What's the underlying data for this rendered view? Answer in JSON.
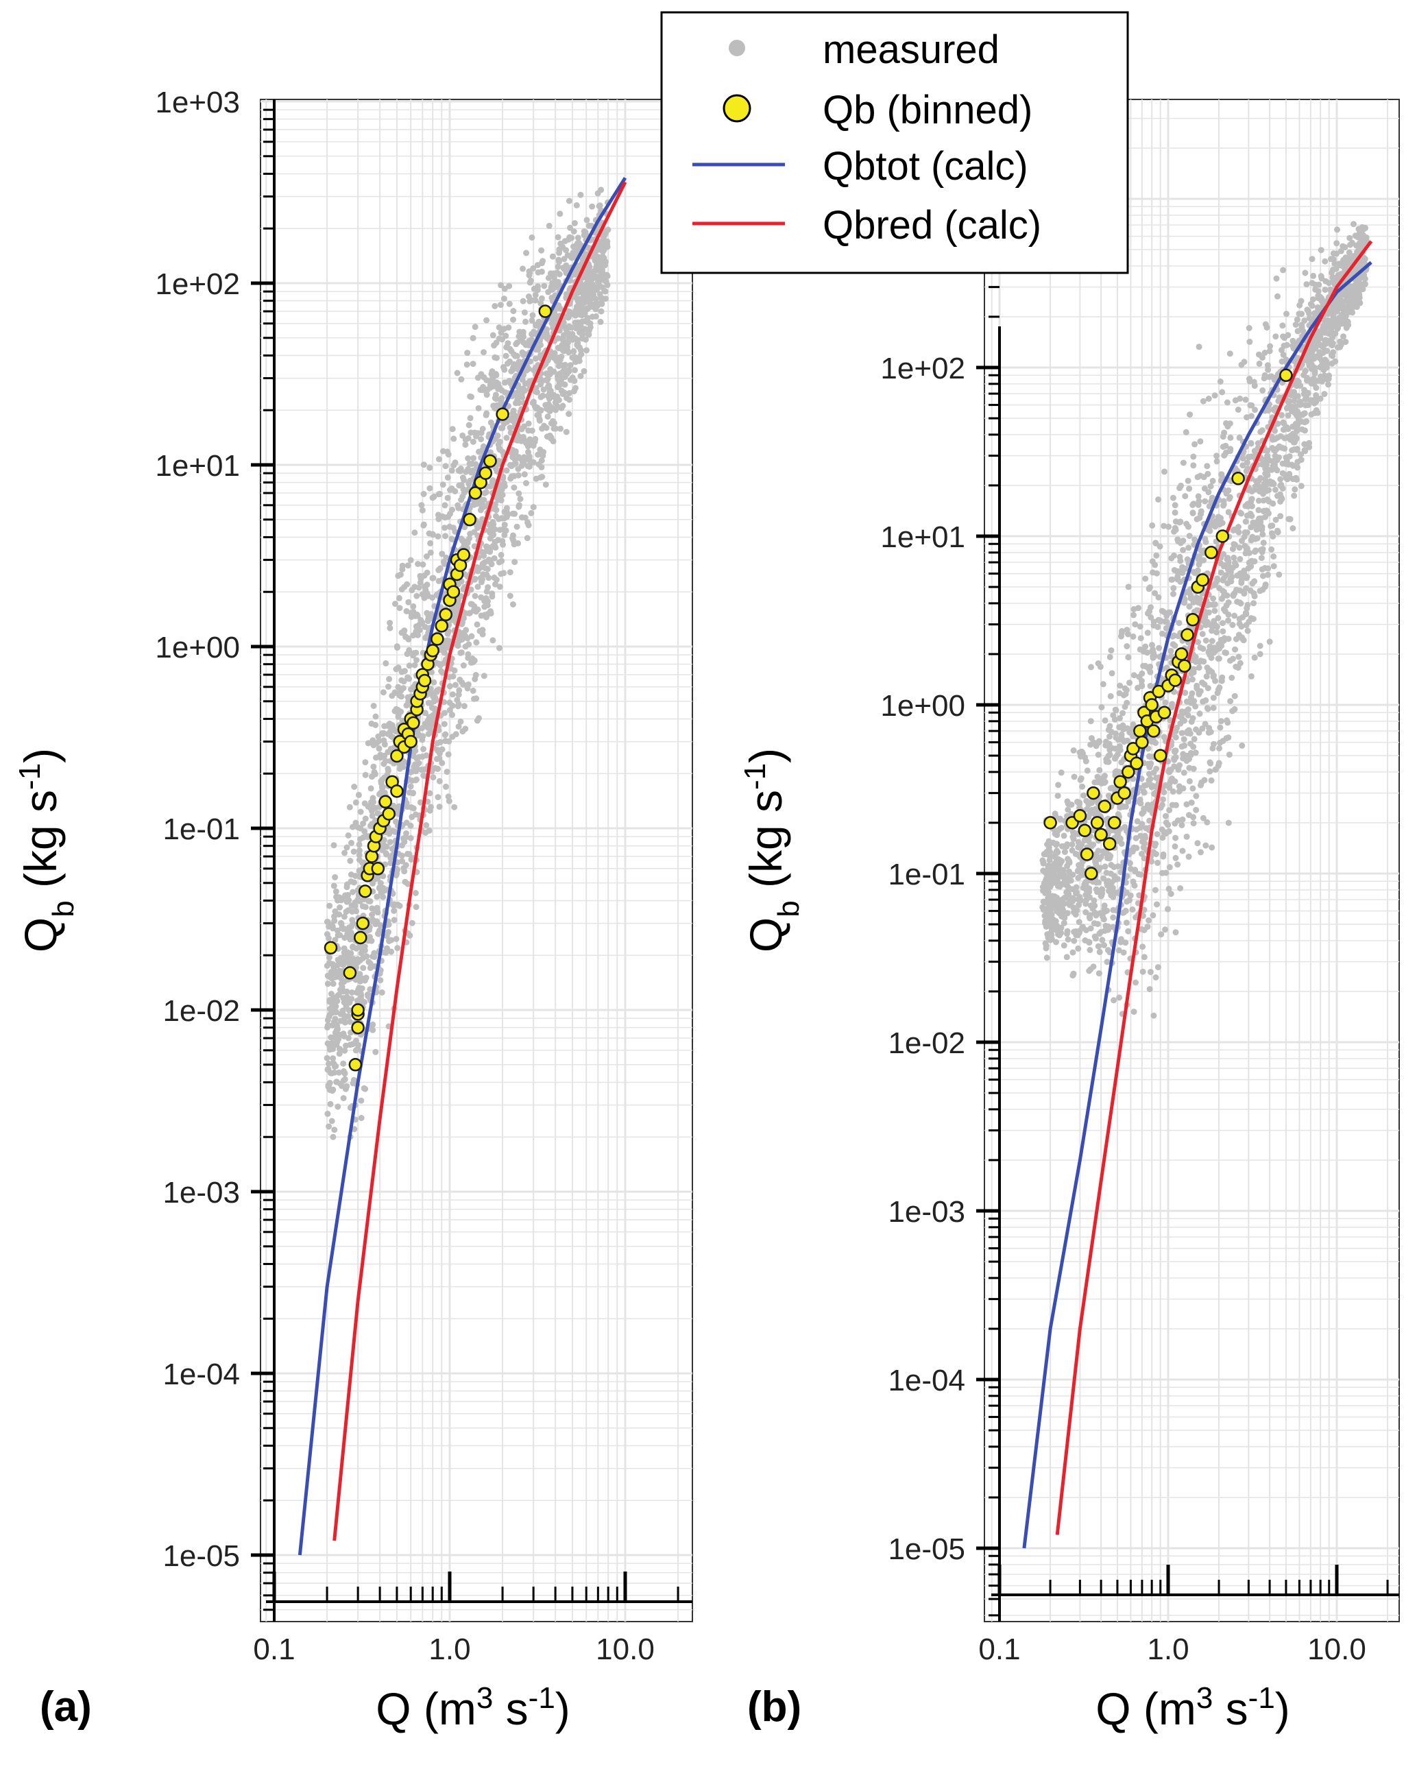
{
  "legend": {
    "placement": "top-center",
    "items": [
      {
        "label": "measured",
        "symbol": "dot",
        "color": "#bdbdbd"
      },
      {
        "label": "Qb (binned)",
        "symbol": "circle",
        "color": "#f5ea1c"
      },
      {
        "label": "Qbtot (calc)",
        "symbol": "line",
        "color": "#3a4db3"
      },
      {
        "label": "Qbred (calc)",
        "symbol": "line",
        "color": "#e8222c"
      }
    ]
  },
  "panels": [
    {
      "label": "(a)",
      "xlabel": {
        "base": "Q (m",
        "sup1": "3",
        "mid": " s",
        "sup2": "-1",
        "end": ")"
      },
      "ylabel": {
        "base": "Q",
        "sub": "b",
        "mid": " (kg s",
        "sup": "-1",
        "end": ")"
      },
      "x_ticks": [
        "0.1",
        "1.0",
        "10.0"
      ],
      "y_ticks": [
        "1e-05",
        "1e-04",
        "1e-03",
        "1e-02",
        "1e-01",
        "1e+00",
        "1e+01",
        "1e+02",
        "1e+03"
      ]
    },
    {
      "label": "(b)",
      "xlabel": {
        "base": "Q (m",
        "sup1": "3",
        "mid": " s",
        "sup2": "-1",
        "end": ")"
      },
      "ylabel": {
        "base": "Q",
        "sub": "b",
        "mid": " (kg s",
        "sup": "-1",
        "end": ")"
      },
      "x_ticks": [
        "0.1",
        "1.0",
        "10.0"
      ],
      "y_ticks": [
        "1e-05",
        "1e-04",
        "1e-03",
        "1e-02",
        "1e-01",
        "1e+00",
        "1e+01",
        "1e+02"
      ]
    }
  ],
  "chart_data": [
    {
      "type": "scatter",
      "panel": "(a)",
      "x_scale": "log",
      "y_scale": "log",
      "xlim": [
        0.08,
        25
      ],
      "ylim": [
        6e-06,
        2500
      ],
      "grid": true,
      "series": [
        {
          "name": "Qbtot (calc)",
          "kind": "line",
          "color": "#3a4db3",
          "x": [
            0.14,
            0.2,
            0.3,
            0.4,
            0.5,
            0.6,
            0.7,
            0.8,
            1.0,
            1.5,
            2.0,
            3.0,
            5.0,
            7.0,
            10.0
          ],
          "y": [
            1e-05,
            0.0003,
            0.004,
            0.02,
            0.08,
            0.28,
            0.7,
            1.3,
            3.0,
            10,
            20,
            45,
            120,
            220,
            380
          ]
        },
        {
          "name": "Qbred (calc)",
          "kind": "line",
          "color": "#e8222c",
          "x": [
            0.22,
            0.3,
            0.4,
            0.5,
            0.6,
            0.7,
            0.8,
            1.0,
            1.5,
            2.0,
            3.0,
            5.0,
            7.0,
            10.0
          ],
          "y": [
            1.2e-05,
            0.00025,
            0.0025,
            0.013,
            0.045,
            0.12,
            0.3,
            0.9,
            4.0,
            10,
            28,
            90,
            180,
            360
          ]
        },
        {
          "name": "Qb (binned)",
          "kind": "points",
          "color": "#f5ea1c",
          "x": [
            0.21,
            0.27,
            0.29,
            0.3,
            0.3,
            0.3,
            0.31,
            0.32,
            0.33,
            0.34,
            0.35,
            0.36,
            0.37,
            0.38,
            0.39,
            0.4,
            0.42,
            0.43,
            0.45,
            0.47,
            0.5,
            0.5,
            0.52,
            0.55,
            0.55,
            0.58,
            0.6,
            0.6,
            0.62,
            0.65,
            0.65,
            0.68,
            0.7,
            0.7,
            0.72,
            0.75,
            0.78,
            0.8,
            0.85,
            0.9,
            0.95,
            1.0,
            1.0,
            1.05,
            1.1,
            1.1,
            1.15,
            1.2,
            1.3,
            1.4,
            1.5,
            1.6,
            1.7,
            2.0,
            3.5
          ],
          "y": [
            0.022,
            0.016,
            0.005,
            0.0095,
            0.008,
            0.01,
            0.025,
            0.03,
            0.045,
            0.055,
            0.06,
            0.07,
            0.08,
            0.09,
            0.06,
            0.1,
            0.11,
            0.14,
            0.12,
            0.18,
            0.16,
            0.25,
            0.3,
            0.28,
            0.35,
            0.33,
            0.3,
            0.4,
            0.38,
            0.45,
            0.5,
            0.55,
            0.6,
            0.7,
            0.65,
            0.8,
            0.9,
            0.95,
            1.1,
            1.3,
            1.5,
            1.8,
            2.2,
            2.0,
            2.5,
            3.0,
            2.8,
            3.2,
            5.0,
            7.0,
            8.0,
            9.0,
            10.5,
            19.0,
            70.0
          ]
        },
        {
          "name": "measured",
          "kind": "cloud",
          "color": "#bdbdbd",
          "x": [
            0.2,
            0.25,
            0.3,
            0.35,
            0.4,
            0.45,
            0.5,
            0.6,
            0.7,
            0.8,
            1.0,
            1.2,
            1.5,
            2.0,
            2.5,
            3.0,
            4.0,
            5.0,
            6.0,
            8.0
          ],
          "y_low": [
            0.001,
            0.0008,
            0.0012,
            0.002,
            0.003,
            0.004,
            0.006,
            0.01,
            0.02,
            0.03,
            0.06,
            0.1,
            0.3,
            0.8,
            1.5,
            3,
            8,
            15,
            25,
            60
          ],
          "y_high": [
            0.1,
            0.2,
            0.4,
            0.8,
            1.5,
            3,
            5,
            10,
            15,
            20,
            40,
            60,
            100,
            180,
            250,
            300,
            350,
            400,
            400,
            400
          ]
        }
      ]
    },
    {
      "type": "scatter",
      "panel": "(b)",
      "x_scale": "log",
      "y_scale": "log",
      "xlim": [
        0.08,
        25
      ],
      "ylim": [
        6e-06,
        2500
      ],
      "grid": true,
      "series": [
        {
          "name": "Qbtot (calc)",
          "kind": "line",
          "color": "#3a4db3",
          "x": [
            0.14,
            0.2,
            0.3,
            0.4,
            0.5,
            0.6,
            0.7,
            0.8,
            1.0,
            1.5,
            2.0,
            3.0,
            5.0,
            7.0,
            10.0,
            16.0
          ],
          "y": [
            1e-05,
            0.0002,
            0.002,
            0.012,
            0.05,
            0.2,
            0.5,
            1.0,
            2.5,
            9,
            18,
            40,
            100,
            170,
            280,
            420
          ]
        },
        {
          "name": "Qbred (calc)",
          "kind": "line",
          "color": "#e8222c",
          "x": [
            0.22,
            0.3,
            0.4,
            0.5,
            0.6,
            0.7,
            0.8,
            1.0,
            1.5,
            2.0,
            3.0,
            5.0,
            7.0,
            10.0,
            16.0
          ],
          "y": [
            1.2e-05,
            0.0002,
            0.0015,
            0.007,
            0.025,
            0.07,
            0.18,
            0.6,
            3.0,
            8,
            22,
            70,
            150,
            300,
            560
          ]
        },
        {
          "name": "Qb (binned)",
          "kind": "points",
          "color": "#f5ea1c",
          "x": [
            0.2,
            0.27,
            0.3,
            0.32,
            0.33,
            0.35,
            0.36,
            0.38,
            0.4,
            0.42,
            0.45,
            0.48,
            0.5,
            0.52,
            0.55,
            0.58,
            0.6,
            0.62,
            0.65,
            0.68,
            0.7,
            0.72,
            0.75,
            0.78,
            0.8,
            0.82,
            0.85,
            0.88,
            0.9,
            0.95,
            1.0,
            1.05,
            1.1,
            1.15,
            1.2,
            1.25,
            1.3,
            1.4,
            1.5,
            1.6,
            1.8,
            2.1,
            2.6,
            5.0
          ],
          "y": [
            0.2,
            0.2,
            0.22,
            0.18,
            0.13,
            0.1,
            0.3,
            0.2,
            0.17,
            0.25,
            0.15,
            0.2,
            0.28,
            0.35,
            0.3,
            0.4,
            0.5,
            0.55,
            0.45,
            0.7,
            0.6,
            0.9,
            0.8,
            1.1,
            1.0,
            0.7,
            0.85,
            1.2,
            0.5,
            0.9,
            1.3,
            1.5,
            1.4,
            1.8,
            2.0,
            1.7,
            2.6,
            3.2,
            5.0,
            5.5,
            8.0,
            10.0,
            22.0,
            90.0
          ]
        },
        {
          "name": "measured",
          "kind": "cloud",
          "color": "#bdbdbd",
          "x": [
            0.18,
            0.22,
            0.27,
            0.33,
            0.4,
            0.5,
            0.6,
            0.7,
            0.8,
            1.0,
            1.2,
            1.5,
            2.0,
            2.5,
            3.0,
            4.0,
            6.0,
            8.0,
            11.0,
            15.0
          ],
          "y_low": [
            0.03,
            0.02,
            0.015,
            0.012,
            0.008,
            0.006,
            0.005,
            0.006,
            0.01,
            0.02,
            0.04,
            0.06,
            0.1,
            0.2,
            0.5,
            2,
            10,
            40,
            100,
            250
          ],
          "y_high": [
            0.2,
            0.4,
            0.7,
            1.5,
            3,
            6,
            12,
            20,
            40,
            70,
            100,
            150,
            200,
            250,
            350,
            450,
            550,
            650,
            800,
            900
          ]
        }
      ]
    }
  ]
}
